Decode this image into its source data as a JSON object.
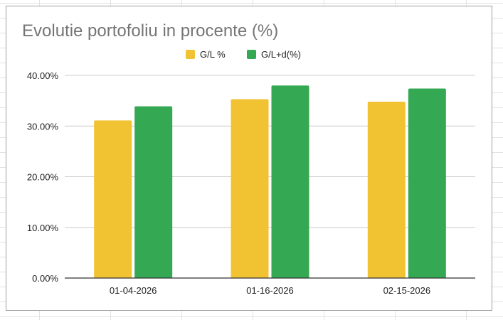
{
  "chart_data": {
    "type": "bar",
    "title": "Evolutie portofoliu in procente (%)",
    "categories": [
      "01-04-2026",
      "01-16-2026",
      "02-15-2026"
    ],
    "series": [
      {
        "name": "G/L %",
        "color": "#f1c232",
        "values": [
          31.1,
          35.3,
          34.8
        ]
      },
      {
        "name": "G/L+d(%)",
        "color": "#34a853",
        "values": [
          33.9,
          38.0,
          37.4
        ]
      }
    ],
    "yticks": [
      "0.00%",
      "10.00%",
      "20.00%",
      "30.00%",
      "40.00%"
    ],
    "ylim": [
      0,
      40
    ],
    "xlabel": "",
    "ylabel": "",
    "grid": true,
    "legend": "top-center"
  }
}
